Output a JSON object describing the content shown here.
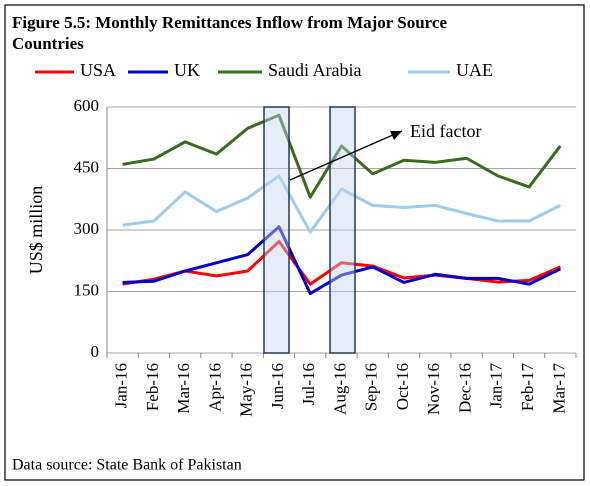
{
  "chart_data": {
    "type": "line",
    "title": "Figure 5.5: Monthly Remittances Inflow from Major  Source",
    "title_line2": "Countries",
    "ylabel": "US$ million",
    "annotation": "Eid factor",
    "source": "Data source: State Bank of Pakistan",
    "categories": [
      "Jan-16",
      "Feb-16",
      "Mar-16",
      "Apr-16",
      "May-16",
      "Jun-16",
      "Jul-16",
      "Aug-16",
      "Sep-16",
      "Oct-16",
      "Nov-16",
      "Dec-16",
      "Jan-17",
      "Feb-17",
      "Mar-17"
    ],
    "series": [
      {
        "name": "USA",
        "color": "#ff0000",
        "values": [
          168,
          180,
          200,
          188,
          200,
          272,
          168,
          220,
          212,
          183,
          190,
          182,
          173,
          177,
          210
        ]
      },
      {
        "name": "UK",
        "color": "#0000cc",
        "values": [
          172,
          175,
          200,
          220,
          240,
          308,
          145,
          190,
          210,
          172,
          192,
          182,
          182,
          168,
          205
        ]
      },
      {
        "name": "Saudi Arabia",
        "color": "#3a6b1f",
        "values": [
          460,
          473,
          515,
          485,
          548,
          580,
          380,
          505,
          437,
          470,
          465,
          475,
          432,
          405,
          505
        ]
      },
      {
        "name": "UAE",
        "color": "#9ecbf0",
        "values": [
          312,
          322,
          393,
          345,
          378,
          432,
          295,
          400,
          360,
          355,
          360,
          340,
          322,
          322,
          360
        ]
      }
    ],
    "ylim": [
      0,
      600
    ],
    "yticks": [
      0,
      150,
      300,
      450,
      600
    ],
    "grid": true,
    "legend": "top"
  }
}
